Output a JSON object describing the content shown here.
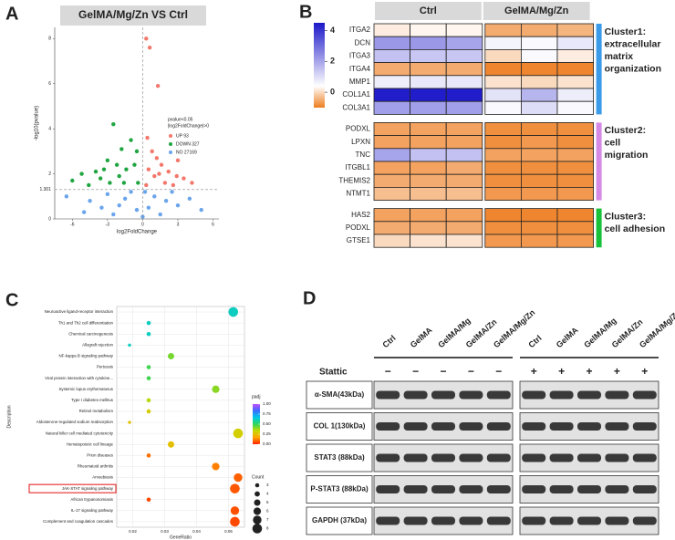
{
  "panel_labels": [
    "A",
    "B",
    "C",
    "D"
  ],
  "chart_data": [
    {
      "type": "scatter",
      "title": "GelMA/Mg/Zn  VS  Ctrl",
      "x_label": "log2FoldChange",
      "y_label": "-log10(pvalue)",
      "xlim": [
        -7.5,
        6.5
      ],
      "xticks": [
        -6,
        -3,
        0,
        3,
        6
      ],
      "ylim": [
        0,
        8.5
      ],
      "yticks": [
        0,
        2,
        4,
        6,
        8
      ],
      "threshold": 1.301,
      "vline": 0,
      "legend_title": [
        "pvalue<0.05",
        "|log2FoldChange|>0"
      ],
      "legend_position": "right",
      "series": [
        {
          "name": "UP 93",
          "color": "#f3776b",
          "x": [
            0.3,
            0.6,
            1.3,
            0.4,
            0.8,
            1.2,
            1.6,
            2.2,
            2.9,
            3.5,
            0.5,
            1.0,
            1.9,
            2.6,
            4.2,
            0.3,
            1.4,
            3.0
          ],
          "values": [
            8.0,
            7.6,
            5.9,
            3.6,
            3.0,
            2.7,
            2.4,
            2.1,
            1.9,
            1.8,
            2.2,
            1.9,
            1.6,
            1.5,
            1.6,
            1.5,
            2.0,
            2.6
          ]
        },
        {
          "name": "DOWN 327",
          "color": "#1fa541",
          "x": [
            -2.5,
            -1.0,
            -0.5,
            -1.8,
            -3.0,
            -2.2,
            -4.0,
            -5.2,
            -1.4,
            -0.7,
            -3.6,
            -6.0,
            -2.8,
            -1.6,
            -4.6,
            -0.4,
            -2.0,
            -3.3
          ],
          "values": [
            4.2,
            3.5,
            3.0,
            3.1,
            2.6,
            2.4,
            2.1,
            2.0,
            2.2,
            2.4,
            1.8,
            1.7,
            1.6,
            1.6,
            1.5,
            1.6,
            1.9,
            2.2
          ]
        },
        {
          "name": "NO 27169",
          "color": "#6aa5ec",
          "x": [
            -6.5,
            -4.5,
            -3,
            -2,
            -1,
            -0.5,
            0,
            0.5,
            1,
            2,
            3,
            4,
            5,
            -5,
            -2.5,
            1.5,
            -1.5,
            2.5,
            -3.5,
            0.2
          ],
          "values": [
            1.0,
            0.8,
            1.1,
            0.6,
            1.2,
            0.4,
            0.1,
            0.5,
            1.0,
            0.8,
            0.6,
            0.9,
            0.4,
            0.3,
            0.2,
            0.2,
            0.9,
            1.2,
            0.5,
            1.2
          ]
        }
      ]
    },
    {
      "type": "heatmap",
      "groups": [
        "Ctrl",
        "GelMA/Mg/Zn"
      ],
      "zticks": [
        0,
        2,
        4
      ],
      "colorscale": [
        [
          -1,
          "#ee7d1f"
        ],
        [
          0.4,
          "#ffffff"
        ],
        [
          4.5,
          "#1c17c9"
        ]
      ],
      "clusters": [
        {
          "name": [
            "Cluster1:",
            "extracellular",
            "matrix",
            "organization"
          ],
          "color": "#2f86d6",
          "bar_color": "#3b9be8",
          "genes": [
            "ITGA2",
            "DCN",
            "ITGA3",
            "ITGA4",
            "MMP1",
            "COL1A1",
            "COL3A1"
          ],
          "values": [
            [
              0.2,
              0.3,
              0.3,
              -0.5,
              -0.5,
              -0.4
            ],
            [
              2.2,
              2.2,
              2.0,
              0.6,
              0.5,
              0.8
            ],
            [
              1.5,
              1.4,
              1.4,
              0.0,
              0.5,
              0.2
            ],
            [
              -0.5,
              -0.5,
              -0.5,
              -0.9,
              -0.9,
              -0.9
            ],
            [
              0.7,
              0.8,
              0.8,
              0.1,
              0.0,
              0.1
            ],
            [
              4.4,
              4.4,
              4.4,
              0.9,
              1.7,
              0.7
            ],
            [
              2.1,
              2.1,
              2.1,
              0.5,
              1.0,
              0.5
            ]
          ]
        },
        {
          "name": [
            "Cluster2:",
            "cell",
            "migration"
          ],
          "color": "#8a2aa6",
          "bar_color": "#d58ae6",
          "genes": [
            "PODXL",
            "LPXN",
            "TNC",
            "ITGBL1",
            "THEMIS2",
            "NTMT1"
          ],
          "values": [
            [
              -0.6,
              -0.6,
              -0.6,
              -0.8,
              -0.8,
              -0.8
            ],
            [
              -0.6,
              -0.6,
              -0.6,
              -0.8,
              -0.7,
              -0.8
            ],
            [
              2.0,
              1.5,
              1.5,
              -0.6,
              -0.6,
              -0.6
            ],
            [
              -0.6,
              -0.6,
              -0.5,
              -0.8,
              -0.8,
              -0.8
            ],
            [
              -0.5,
              -0.5,
              -0.5,
              -0.8,
              -0.8,
              -0.8
            ],
            [
              -0.3,
              -0.3,
              -0.3,
              -0.7,
              -0.7,
              -0.7
            ]
          ]
        },
        {
          "name": [
            "Cluster3:",
            "cell adhesion"
          ],
          "color": "#1aa33a",
          "bar_color": "#17c23a",
          "genes": [
            "HAS2",
            "PODXL",
            "GTSE1"
          ],
          "values": [
            [
              -0.6,
              -0.6,
              -0.6,
              -0.9,
              -0.9,
              -0.9
            ],
            [
              -0.5,
              -0.5,
              -0.5,
              -0.8,
              -0.8,
              -0.8
            ],
            [
              0.0,
              0.1,
              0.1,
              -0.7,
              -0.7,
              -0.7
            ]
          ]
        }
      ]
    },
    {
      "type": "dot",
      "x_label": "GeneRatio",
      "y_label": "Description",
      "categories": [
        "Neuroactive ligand-receptor interaction",
        "Th1 and Th2 cell differentiation",
        "Chemical carcinogenesis",
        "Allograft rejection",
        "NF-kappa B signaling pathway",
        "Pertussis",
        "Viral protein interaction with cytokine...",
        "Systemic lupus erythematosus",
        "Type I diabetes mellitus",
        "Retinol metabolism",
        "Aldosterone-regulated sodium reabsorption",
        "Natural killer cell mediated cytotoxicity",
        "Hematopoietic cell lineage",
        "Prion diseases",
        "Rheumatoid arthritis",
        "Amoebiasis",
        "JAK-STAT signaling pathway",
        "African trypanosomiasis",
        "IL-17 signaling pathway",
        "Complement and coagulation cascades"
      ],
      "x": [
        0.0515,
        0.025,
        0.025,
        0.019,
        0.032,
        0.025,
        0.025,
        0.046,
        0.025,
        0.025,
        0.019,
        0.053,
        0.032,
        0.025,
        0.046,
        0.053,
        0.052,
        0.025,
        0.052,
        0.052
      ],
      "values": [
        0.62,
        0.62,
        0.62,
        0.62,
        0.42,
        0.48,
        0.48,
        0.4,
        0.35,
        0.3,
        0.25,
        0.3,
        0.25,
        0.1,
        0.12,
        0.08,
        0.07,
        0.05,
        0.06,
        0.05
      ],
      "sizes": [
        8,
        3,
        3,
        2,
        5,
        3,
        3,
        6,
        3,
        3,
        2,
        8,
        5,
        3,
        6,
        7,
        8,
        3,
        7,
        8
      ],
      "highlighted": [
        false,
        false,
        false,
        false,
        false,
        false,
        false,
        false,
        false,
        false,
        false,
        false,
        false,
        false,
        false,
        false,
        true,
        false,
        false,
        false
      ],
      "highlight_color": "#e01010",
      "xlim": [
        0.015,
        0.055
      ],
      "xticks": [
        0.02,
        0.03,
        0.04,
        0.05
      ],
      "grid": true,
      "color_title": "padj",
      "color_lim": [
        0,
        1
      ],
      "color_ticks": [
        {
          "value": 0,
          "label": "0.00"
        },
        {
          "value": 0.25,
          "label": "0.25"
        },
        {
          "value": 0.5,
          "label": "0.50"
        },
        {
          "value": 0.75,
          "label": "0.75"
        },
        {
          "value": 1,
          "label": "1.00"
        }
      ],
      "colors": [
        "#ff2000",
        "#ffa500",
        "#c8d800",
        "#2ed65a",
        "#00c8e8",
        "#3a6bff",
        "#c24dff"
      ],
      "size_title": "Count",
      "size_ticks": [
        3,
        4,
        5,
        6,
        7,
        8
      ]
    }
  ],
  "blot": {
    "lanes": [
      "Ctrl",
      "GelMA",
      "GelMA/Mg",
      "GelMA/Zn",
      "GelMA/Mg/Zn",
      "Ctrl",
      "GelMA",
      "GelMA/Mg",
      "GelMA/Zn",
      "GelMA/Mg/Zn"
    ],
    "treatment": {
      "label": "Stattic",
      "signs": [
        "−",
        "−",
        "−",
        "−",
        "−",
        "+",
        "+",
        "+",
        "+",
        "+"
      ]
    },
    "proteins": [
      "α-SMA(43kDa)",
      "COL 1(130kDa)",
      "STAT3 (88kDa)",
      "P-STAT3 (88kDa)",
      "GAPDH (37kDa)"
    ]
  }
}
